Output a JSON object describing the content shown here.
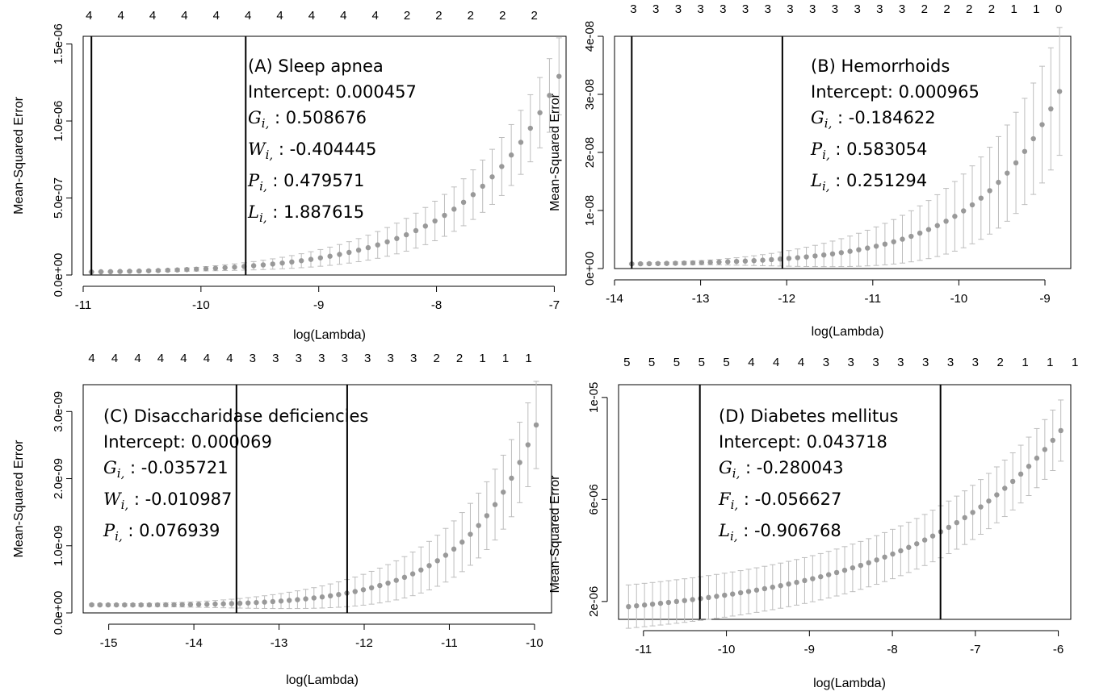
{
  "chart_data": [
    {
      "id": "A",
      "type": "scatter",
      "subtype": "cv-error-bars",
      "xlabel": "log(Lambda)",
      "ylabel": "Mean-Squared Error",
      "xlim": [
        -11,
        -6.9
      ],
      "ylim": [
        0,
        1.55e-06
      ],
      "x_ticks": [
        -11,
        -10,
        -9,
        -8,
        -7
      ],
      "x_tick_labels": [
        "-11",
        "-10",
        "-9",
        "-8",
        "-7"
      ],
      "y_ticks": [
        0,
        5e-07,
        1e-06,
        1.5e-06
      ],
      "y_tick_labels": [
        "0.0e+00",
        "5.0e-07",
        "1.0e-06",
        "1.5e-06"
      ],
      "top_counts": [
        "4",
        "4",
        "4",
        "4",
        "4",
        "4",
        "4",
        "4",
        "4",
        "4",
        "2",
        "2",
        "2",
        "2",
        "2"
      ],
      "top_count_x": [
        -10.95,
        -10.68,
        -10.41,
        -10.14,
        -9.87,
        -9.6,
        -9.33,
        -9.06,
        -8.79,
        -8.52,
        -8.25,
        -7.98,
        -7.71,
        -7.44,
        -7.17
      ],
      "vlines": [
        -10.93,
        -9.62
      ],
      "curve": {
        "x_start": -10.93,
        "x_end": -6.96,
        "n": 50,
        "y_min": 2e-08,
        "y_max": 1.29e-06,
        "growth": 5.0,
        "err_start": 3e-09,
        "err_end": 2.5e-07
      },
      "annotation": {
        "title": "(A)  Sleep apnea",
        "intercept": "Intercept: 0.000457",
        "coefficients": [
          {
            "symbol": "G",
            "sub": "i,",
            "value": ": 0.508676"
          },
          {
            "symbol": "W",
            "sub": "i,",
            "value": ": -0.404445"
          },
          {
            "symbol": "P",
            "sub": "i,",
            "value": ": 0.479571"
          },
          {
            "symbol": "L",
            "sub": "i,",
            "value": ": 1.887615"
          }
        ]
      }
    },
    {
      "id": "B",
      "type": "scatter",
      "subtype": "cv-error-bars",
      "xlabel": "log(Lambda)",
      "ylabel": "Mean-Squared Error",
      "xlim": [
        -14,
        -8.7
      ],
      "ylim": [
        0,
        4e-08
      ],
      "x_ticks": [
        -14,
        -13,
        -12,
        -11,
        -10,
        -9
      ],
      "x_tick_labels": [
        "-14",
        "-13",
        "-12",
        "-11",
        "-10",
        "-9"
      ],
      "y_ticks": [
        0,
        1e-08,
        2e-08,
        3e-08,
        4e-08
      ],
      "y_tick_labels": [
        "0e+00",
        "1e-08",
        "2e-08",
        "3e-08",
        "4e-08"
      ],
      "top_counts": [
        "3",
        "3",
        "3",
        "3",
        "3",
        "3",
        "3",
        "3",
        "3",
        "3",
        "3",
        "3",
        "3",
        "2",
        "2",
        "2",
        "2",
        "1",
        "1",
        "0"
      ],
      "top_count_x": [
        -13.78,
        -13.52,
        -13.26,
        -13.0,
        -12.74,
        -12.48,
        -12.22,
        -11.96,
        -11.7,
        -11.44,
        -11.18,
        -10.92,
        -10.66,
        -10.4,
        -10.14,
        -9.88,
        -9.62,
        -9.36,
        -9.1,
        -8.84
      ],
      "vlines": [
        -13.8,
        -12.05
      ],
      "curve": {
        "x_start": -13.8,
        "x_end": -8.83,
        "n": 50,
        "y_min": 8e-10,
        "y_max": 3.05e-08,
        "growth": 5.2,
        "err_start": 1.5e-10,
        "err_end": 1.1e-08
      },
      "annotation": {
        "title": "(B) Hemorrhoids",
        "intercept": "Intercept: 0.000965",
        "coefficients": [
          {
            "symbol": "G",
            "sub": "i,",
            "value": ": -0.184622"
          },
          {
            "symbol": "P",
            "sub": "i,",
            "value": ": 0.583054"
          },
          {
            "symbol": "L",
            "sub": "i,",
            "value": ": 0.251294"
          }
        ]
      }
    },
    {
      "id": "C",
      "type": "scatter",
      "subtype": "cv-error-bars",
      "xlabel": "log(Lambda)",
      "ylabel": "Mean-Squared Error",
      "xlim": [
        -15.3,
        -9.8
      ],
      "ylim": [
        0,
        3.4e-09
      ],
      "x_ticks": [
        -15,
        -14,
        -13,
        -12,
        -11,
        -10
      ],
      "x_tick_labels": [
        "-15",
        "-14",
        "-13",
        "-12",
        "-11",
        "-10"
      ],
      "y_ticks": [
        0,
        1e-09,
        2e-09,
        3e-09
      ],
      "y_tick_labels": [
        "0.0e+00",
        "1.0e-09",
        "2.0e-09",
        "3.0e-09"
      ],
      "top_counts": [
        "4",
        "4",
        "4",
        "4",
        "4",
        "4",
        "4",
        "3",
        "3",
        "3",
        "3",
        "3",
        "3",
        "3",
        "3",
        "2",
        "2",
        "1",
        "1",
        "1"
      ],
      "top_count_x": [
        -15.2,
        -14.93,
        -14.66,
        -14.39,
        -14.12,
        -13.85,
        -13.58,
        -13.31,
        -13.04,
        -12.77,
        -12.5,
        -12.23,
        -11.96,
        -11.69,
        -11.42,
        -11.15,
        -10.88,
        -10.61,
        -10.34,
        -10.07
      ],
      "vlines": [
        -13.5,
        -12.2
      ],
      "curve": {
        "x_start": -15.2,
        "x_end": -9.98,
        "n": 55,
        "y_min": 1.2e-10,
        "y_max": 2.8e-09,
        "growth": 6.3,
        "err_start": 1.5e-11,
        "err_end": 6.5e-10,
        "dip_amplitude": 1.2e-11,
        "dip_at": 0.32
      },
      "annotation": {
        "title": "(C) Disaccharidase deficiencies",
        "intercept": "Intercept: 0.000069",
        "coefficients": [
          {
            "symbol": "G",
            "sub": "i,",
            "value": ": -0.035721"
          },
          {
            "symbol": "W",
            "sub": "i,",
            "value": ": -0.010987"
          },
          {
            "symbol": "P",
            "sub": "i,",
            "value": ": 0.076939"
          }
        ]
      }
    },
    {
      "id": "D",
      "type": "scatter",
      "subtype": "cv-error-bars",
      "xlabel": "log(Lambda)",
      "ylabel": "Mean-Squared Error",
      "xlim": [
        -11.3,
        -5.85
      ],
      "ylim": [
        1.3e-06,
        1.05e-05
      ],
      "x_ticks": [
        -11,
        -10,
        -9,
        -8,
        -7,
        -6
      ],
      "x_tick_labels": [
        "-11",
        "-10",
        "-9",
        "-8",
        "-7",
        "-6"
      ],
      "y_ticks": [
        2e-06,
        6e-06,
        1e-05
      ],
      "y_tick_labels": [
        "2e-06",
        "6e-06",
        "1e-05"
      ],
      "top_counts": [
        "5",
        "5",
        "5",
        "5",
        "5",
        "4",
        "4",
        "4",
        "3",
        "3",
        "3",
        "3",
        "3",
        "3",
        "3",
        "2",
        "1",
        "1",
        "1"
      ],
      "top_count_x": [
        -11.2,
        -10.9,
        -10.6,
        -10.3,
        -10.0,
        -9.7,
        -9.4,
        -9.1,
        -8.8,
        -8.5,
        -8.2,
        -7.9,
        -7.6,
        -7.3,
        -7.0,
        -6.7,
        -6.4,
        -6.1,
        -5.8
      ],
      "vlines": [
        -10.32,
        -7.42
      ],
      "curve": {
        "x_start": -11.18,
        "x_end": -5.97,
        "n": 55,
        "y_min": 1.8e-06,
        "y_max": 8.7e-06,
        "growth": 3.2,
        "linear_rise": 8e-07,
        "err_start": 8.5e-07,
        "err_end": 1.2e-06
      },
      "annotation": {
        "title": "(D) Diabetes mellitus",
        "intercept": "Intercept: 0.043718",
        "coefficients": [
          {
            "symbol": "G",
            "sub": "i,",
            "value": ": -0.280043"
          },
          {
            "symbol": "F",
            "sub": "i,",
            "value": ": -0.056627"
          },
          {
            "symbol": "L",
            "sub": "i,",
            "value": ": -0.906768"
          }
        ]
      }
    }
  ],
  "colors": {
    "point": "#999999",
    "errorbar": "#bdbdbd",
    "axis": "#000000",
    "vline": "#000000"
  }
}
